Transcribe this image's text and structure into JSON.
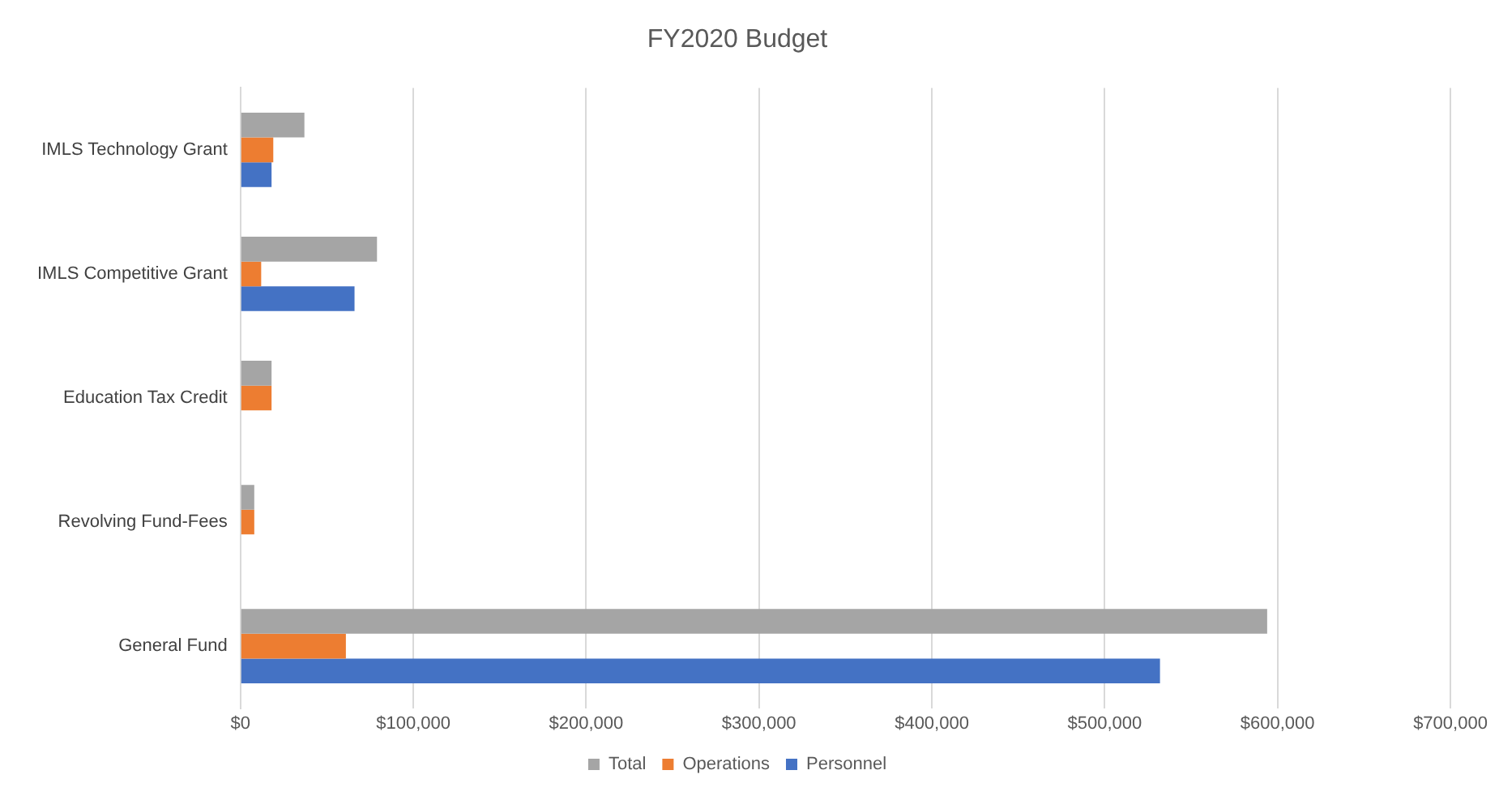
{
  "chart_data": {
    "type": "bar",
    "orientation": "horizontal",
    "title": "FY2020 Budget",
    "categories": [
      "IMLS Technology Grant",
      "IMLS Competitive Grant",
      "Education Tax Credit",
      "Revolving Fund-Fees",
      "General Fund"
    ],
    "series": [
      {
        "name": "Total",
        "color": "#a5a5a5",
        "values": [
          37000,
          79000,
          18000,
          8000,
          594000
        ]
      },
      {
        "name": "Operations",
        "color": "#ed7d31",
        "values": [
          19000,
          12000,
          18000,
          8000,
          61000
        ]
      },
      {
        "name": "Personnel",
        "color": "#4472c4",
        "values": [
          18000,
          66000,
          null,
          null,
          532000
        ]
      }
    ],
    "xlim": [
      0,
      700000
    ],
    "xticks": [
      {
        "value": 0,
        "label": "$0"
      },
      {
        "value": 100000,
        "label": "$100,000"
      },
      {
        "value": 200000,
        "label": "$200,000"
      },
      {
        "value": 300000,
        "label": "$300,000"
      },
      {
        "value": 400000,
        "label": "$400,000"
      },
      {
        "value": 500000,
        "label": "$500,000"
      },
      {
        "value": 600000,
        "label": "$600,000"
      },
      {
        "value": 700000,
        "label": "$700,000"
      }
    ],
    "grid": "x",
    "legend": "bottom"
  }
}
